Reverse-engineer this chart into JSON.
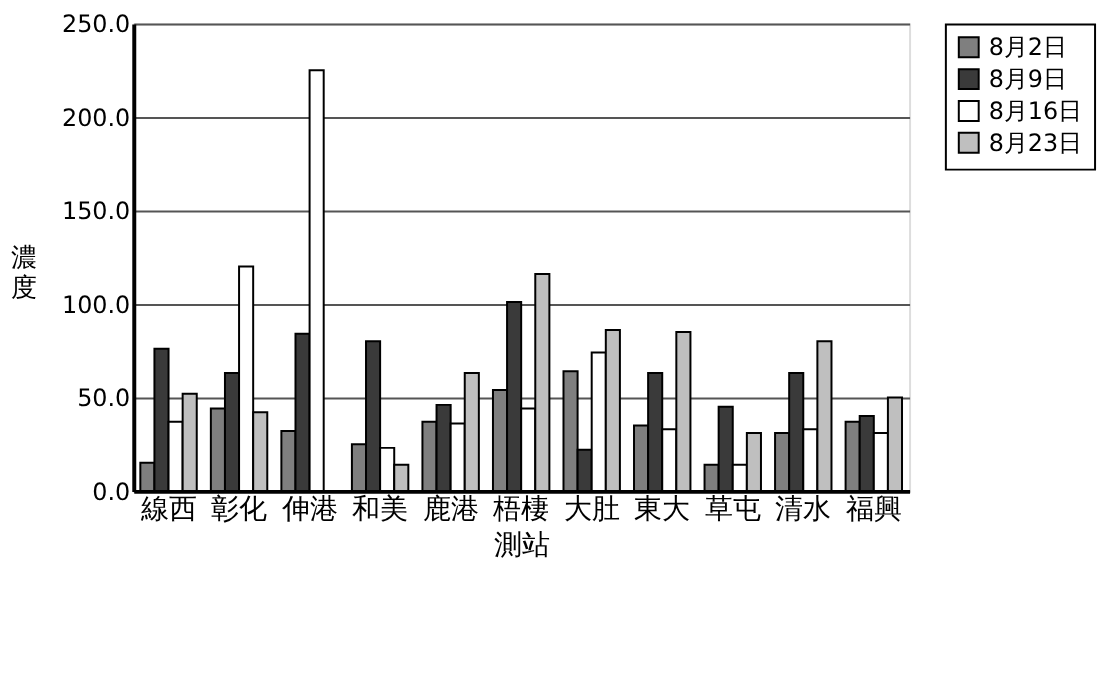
{
  "chart_data": {
    "type": "bar",
    "xlabel": "測站",
    "ylabel": "濃度",
    "categories": [
      "線西",
      "彰化",
      "伸港",
      "和美",
      "鹿港",
      "梧棲",
      "大肚",
      "東大",
      "草屯",
      "清水",
      "福興"
    ],
    "series": [
      {
        "name": "8月2日",
        "color": "#7f7f7f",
        "values": [
          15,
          44,
          32,
          25,
          37,
          54,
          64,
          35,
          14,
          31,
          37
        ]
      },
      {
        "name": "8月9日",
        "color": "#3a3a3a",
        "values": [
          76,
          63,
          84,
          80,
          46,
          101,
          22,
          63,
          45,
          63,
          40
        ]
      },
      {
        "name": "8月16日",
        "color": "#ffffff",
        "values": [
          37,
          120,
          225,
          23,
          36,
          44,
          74,
          33,
          14,
          33,
          31
        ]
      },
      {
        "name": "8月23日",
        "color": "#bfbfbf",
        "values": [
          52,
          42,
          null,
          14,
          63,
          116,
          86,
          85,
          31,
          80,
          50
        ]
      }
    ],
    "ylim": [
      0,
      250
    ],
    "yticks": [
      {
        "value": 0,
        "label": "0.0"
      },
      {
        "value": 50,
        "label": "50.0"
      },
      {
        "value": 100,
        "label": "100.0"
      },
      {
        "value": 150,
        "label": "150.0"
      },
      {
        "value": 200,
        "label": "200.0"
      },
      {
        "value": 250,
        "label": "250.0"
      }
    ],
    "grid": "y",
    "legend": "right"
  }
}
